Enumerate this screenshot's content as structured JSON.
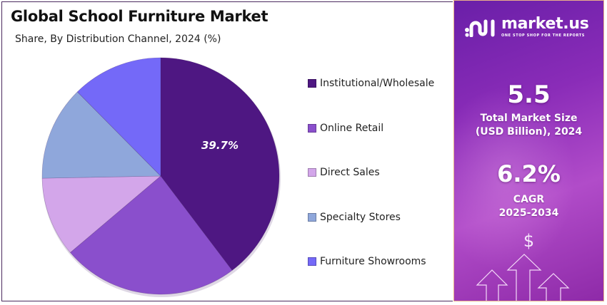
{
  "header": {
    "title": "Global School Furniture Market",
    "subtitle": "Share, By Distribution Channel, 2024 (%)"
  },
  "chart_data": {
    "type": "pie",
    "title": "Global School Furniture Market",
    "subtitle": "Share, By Distribution Channel, 2024 (%)",
    "categories": [
      "Institutional/Wholesale",
      "Online Retail",
      "Direct Sales",
      "Specialty Stores",
      "Furniture Showrooms"
    ],
    "values": [
      39.7,
      24.1,
      10.9,
      12.9,
      12.4
    ],
    "colors": [
      "#4e1782",
      "#8a4fcc",
      "#d3a6ea",
      "#8fa7db",
      "#7469f8"
    ],
    "data_labels": [
      "39.7%",
      "",
      "",
      "",
      ""
    ],
    "start_angle": "12 o'clock, clockwise",
    "legend_position": "right"
  },
  "legend": {
    "items": [
      {
        "label": "Institutional/Wholesale",
        "color": "#4e1782"
      },
      {
        "label": "Online Retail",
        "color": "#8a4fcc"
      },
      {
        "label": "Direct Sales",
        "color": "#d3a6ea"
      },
      {
        "label": "Specialty Stores",
        "color": "#8fa7db"
      },
      {
        "label": "Furniture Showrooms",
        "color": "#7469f8"
      }
    ]
  },
  "sidebar": {
    "brand": "market.us",
    "tagline": "ONE STOP SHOP FOR THE REPORTS",
    "market_size_value": "5.5",
    "market_size_label_1": "Total Market Size",
    "market_size_label_2": "(USD Billion), 2024",
    "cagr_value": "6.2%",
    "cagr_label_1": "CAGR",
    "cagr_label_2": "2025-2034",
    "dollar_symbol": "$"
  }
}
